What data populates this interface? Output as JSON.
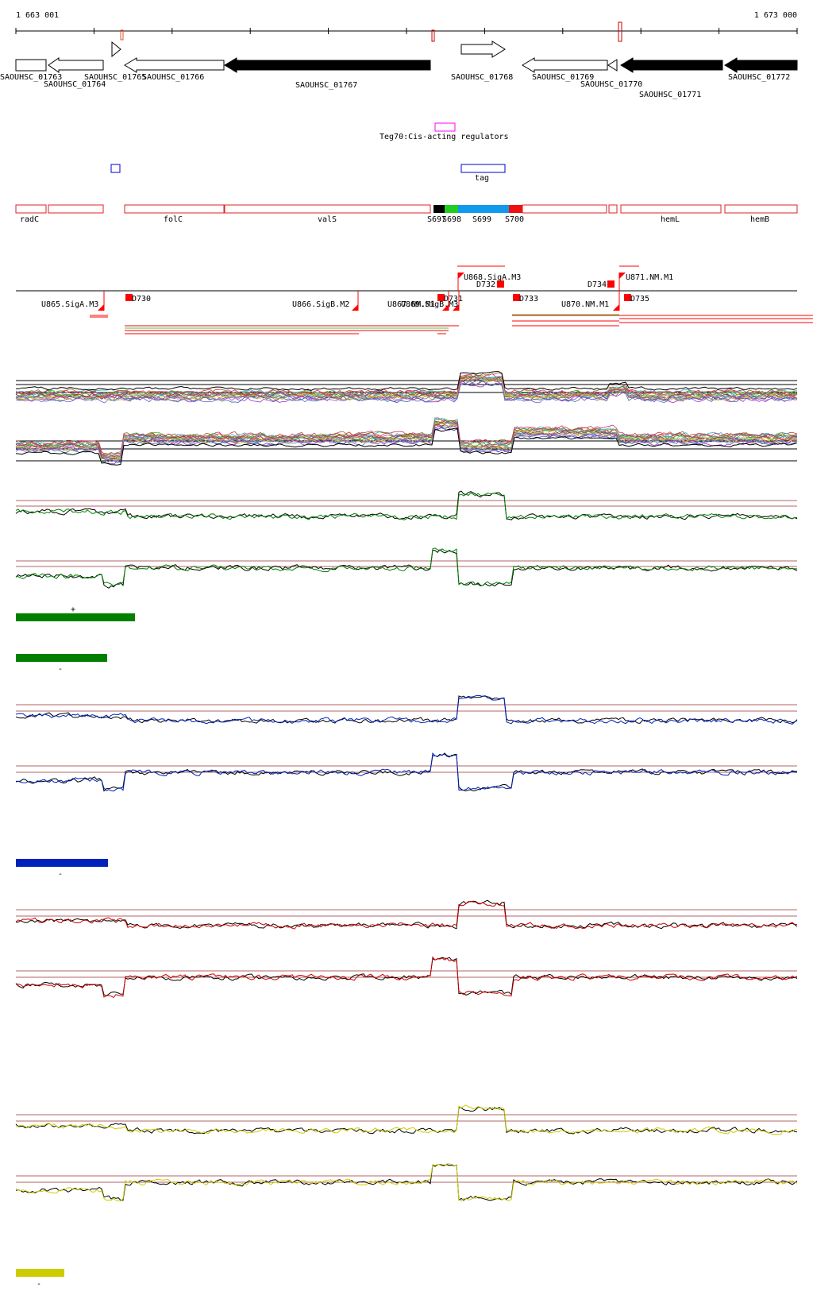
{
  "coords": {
    "start": "1 663 001",
    "end": "1 673 000"
  },
  "genes": [
    {
      "label": "SAOUHSC_01763",
      "strand": "+",
      "fill": "white"
    },
    {
      "label": "SAOUHSC_01764",
      "strand": "-",
      "fill": "white"
    },
    {
      "label": "SAOUHSC_01765",
      "strand": "+",
      "fill": "white"
    },
    {
      "label": "SAOUHSC_01766",
      "strand": "-",
      "fill": "white"
    },
    {
      "label": "SAOUHSC_01767",
      "strand": "-",
      "fill": "black"
    },
    {
      "label": "SAOUHSC_01768",
      "strand": "+",
      "fill": "white"
    },
    {
      "label": "SAOUHSC_01769",
      "strand": "-",
      "fill": "white"
    },
    {
      "label": "SAOUHSC_01770",
      "strand": "-",
      "fill": "white"
    },
    {
      "label": "SAOUHSC_01771",
      "strand": "-",
      "fill": "black"
    },
    {
      "label": "SAOUHSC_01772",
      "strand": "-",
      "fill": "black"
    }
  ],
  "regulators": {
    "label": "Teg70:Cis-acting regulators",
    "color": "#ff00ff"
  },
  "tag": {
    "label": "tag",
    "color": "#0000cc"
  },
  "operons": [
    {
      "label": "radC"
    },
    {
      "label": "folC"
    },
    {
      "label": "valS"
    },
    {
      "label": "S697",
      "color": "#000000"
    },
    {
      "label": "S698",
      "color": "#22cc22"
    },
    {
      "label": "S699",
      "color": "#1199ee"
    },
    {
      "label": "S700",
      "color": "#ee1111"
    },
    {
      "label": "hemL"
    },
    {
      "label": "hemB"
    }
  ],
  "features_top": [
    {
      "label": "U868.SigA.M3"
    },
    {
      "label": "D732"
    },
    {
      "label": "D734"
    },
    {
      "label": "U871.NM.M1"
    }
  ],
  "features_bottom": [
    {
      "label": "U865.SigA.M3"
    },
    {
      "label": "D730"
    },
    {
      "label": "U866.SigB.M2"
    },
    {
      "label": "U867.NM.M1"
    },
    {
      "label": "U869.SigB.M3"
    },
    {
      "label": "D731"
    },
    {
      "label": "D733"
    },
    {
      "label": "U870.NM.M1"
    },
    {
      "label": "D735"
    }
  ],
  "tracks": [
    {
      "color": "#008000",
      "legend_plus": "+",
      "legend_minus": "-"
    },
    {
      "color": "#0022bb",
      "legend_minus": "-"
    },
    {
      "color": "#cc0000"
    },
    {
      "color": "#cccc00",
      "legend_minus": "-"
    }
  ],
  "colors": {
    "accent_red": "#ff0000",
    "ref_line": "#993333"
  }
}
